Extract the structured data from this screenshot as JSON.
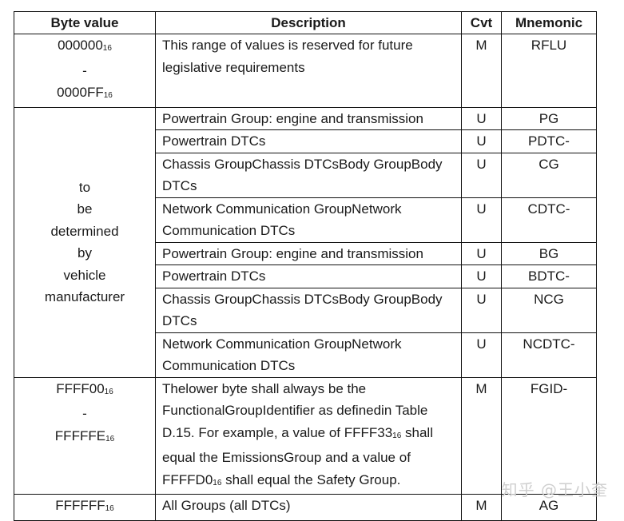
{
  "headers": {
    "byte_value": "Byte value",
    "description": "Description",
    "cvt": "Cvt",
    "mnemonic": "Mnemonic"
  },
  "row1": {
    "byte_start": "000000",
    "byte_start_sub": "16",
    "dash": "-",
    "byte_end": "0000FF",
    "byte_end_sub": "16",
    "description": "This range of values is reserved for future legislative requirements",
    "cvt": "M",
    "mnemonic": "RFLU"
  },
  "tbd_lines": [
    "to",
    "be",
    "determined",
    "by",
    "vehicle",
    "manufacturer"
  ],
  "tbd_rows": [
    {
      "description": "Powertrain Group: engine and transmission",
      "cvt": "U",
      "mnemonic": "PG"
    },
    {
      "description": "Powertrain DTCs",
      "cvt": "U",
      "mnemonic": "PDTC-"
    },
    {
      "description": "Chassis GroupChassis DTCsBody GroupBody DTCs",
      "cvt": "U",
      "mnemonic": "CG"
    },
    {
      "description": "Network Communication GroupNetwork Communication DTCs",
      "cvt": "U",
      "mnemonic": "CDTC-"
    },
    {
      "description": "Powertrain Group: engine and transmission",
      "cvt": "U",
      "mnemonic": "BG"
    },
    {
      "description": "Powertrain DTCs",
      "cvt": "U",
      "mnemonic": "BDTC-"
    },
    {
      "description": "Chassis GroupChassis DTCsBody GroupBody DTCs",
      "cvt": "U",
      "mnemonic": "NCG"
    },
    {
      "description": "Network Communication GroupNetwork Communication DTCs",
      "cvt": "U",
      "mnemonic": "NCDTC-"
    }
  ],
  "row_ffff00": {
    "byte_start": "FFFF00",
    "byte_start_sub": "16",
    "dash": "-",
    "byte_end": "FFFFFE",
    "byte_end_sub": "16",
    "desc_part1": "Thelower byte shall always be the FunctionalGroupIdentifier as definedin Table D.15. For example, a value of FFFF33",
    "desc_sub1": "16",
    "desc_part2": " shall equal the EmissionsGroup and a value of FFFFD0",
    "desc_sub2": "16",
    "desc_part3": " shall equal the Safety Group.",
    "cvt": "M",
    "mnemonic": "FGID-"
  },
  "row_ffffff": {
    "byte": "FFFFFF",
    "byte_sub": "16",
    "description": "All Groups (all DTCs)",
    "cvt": "M",
    "mnemonic": "AG"
  },
  "watermark": "知乎 @王小奎"
}
